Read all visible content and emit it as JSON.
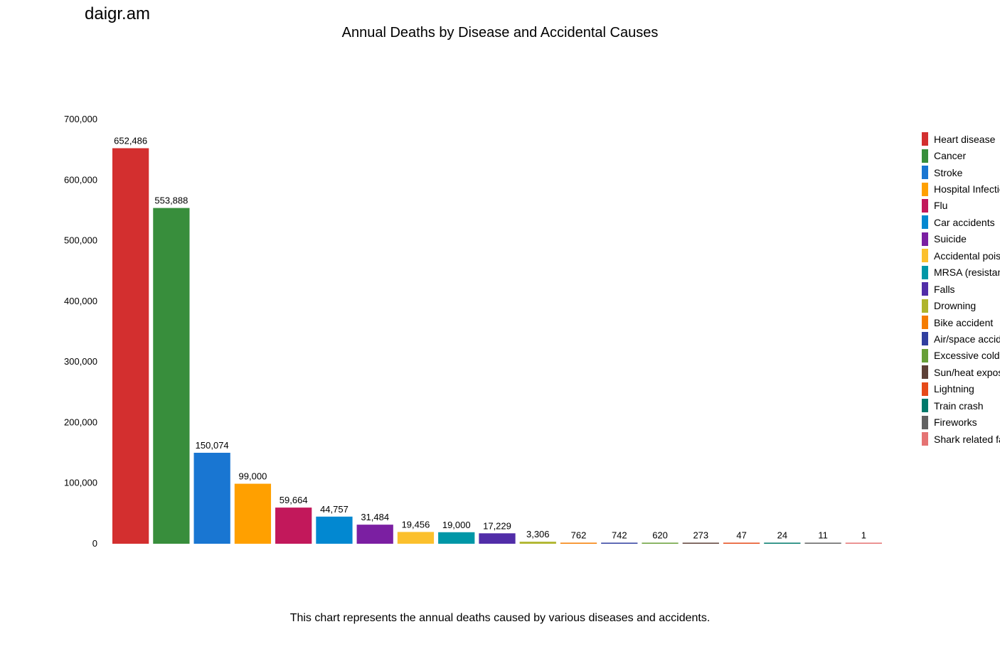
{
  "brand": "daigr.am",
  "caption": "This chart represents the annual deaths caused by various diseases and accidents.",
  "chart_data": {
    "type": "bar",
    "title": "Annual Deaths by Disease and Accidental Causes",
    "xlabel": "",
    "ylabel": "",
    "ylim": [
      0,
      700000
    ],
    "yticks": [
      0,
      100000,
      200000,
      300000,
      400000,
      500000,
      600000,
      700000
    ],
    "ytick_labels": [
      "0",
      "100,000",
      "200,000",
      "300,000",
      "400,000",
      "500,000",
      "600,000",
      "700,000"
    ],
    "grid": false,
    "legend_position": "right",
    "categories": [
      "Heart disease",
      "Cancer",
      "Stroke",
      "Hospital Infectio",
      "Flu",
      "Car accidents",
      "Suicide",
      "Accidental pois",
      "MRSA (resistan",
      "Falls",
      "Drowning",
      "Bike accident",
      "Air/space accid",
      "Excessive cold",
      "Sun/heat expos",
      "Lightning",
      "Train crash",
      "Fireworks",
      "Shark related fa"
    ],
    "values": [
      652486,
      553888,
      150074,
      99000,
      59664,
      44757,
      31484,
      19456,
      19000,
      17229,
      3306,
      762,
      742,
      620,
      273,
      47,
      24,
      11,
      1
    ],
    "value_labels": [
      "652,486",
      "553,888",
      "150,074",
      "99,000",
      "59,664",
      "44,757",
      "31,484",
      "19,456",
      "19,000",
      "17,229",
      "3,306",
      "762",
      "742",
      "620",
      "273",
      "47",
      "24",
      "11",
      "1"
    ],
    "colors": [
      "#d32f2f",
      "#388e3c",
      "#1976d2",
      "#ffa000",
      "#c2185b",
      "#0288d1",
      "#7b1fa2",
      "#fbc02d",
      "#0097a7",
      "#512da8",
      "#afb42b",
      "#f57c00",
      "#303f9f",
      "#689f38",
      "#5d4037",
      "#e64a19",
      "#00796b",
      "#616161",
      "#e57373"
    ]
  }
}
